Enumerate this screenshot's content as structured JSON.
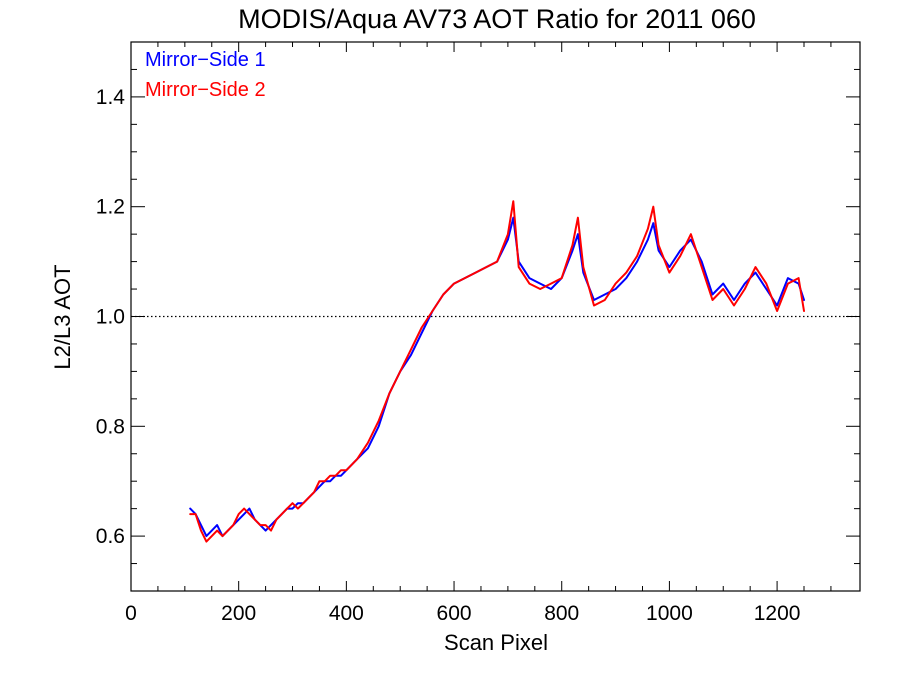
{
  "chart_data": {
    "type": "line",
    "title": "MODIS/Aqua AV73 AOT Ratio for 2011 060",
    "xlabel": "Scan Pixel",
    "ylabel": "L2/L3 AOT",
    "xlim": [
      0,
      1354
    ],
    "ylim": [
      0.5,
      1.5
    ],
    "xticks": [
      "0",
      "200",
      "400",
      "600",
      "800",
      "1000",
      "1200"
    ],
    "yticks": [
      "0.6",
      "0.8",
      "1.0",
      "1.2",
      "1.4"
    ],
    "reference_line": {
      "y": 1.0,
      "style": "dotted"
    },
    "legend": {
      "placement": "top-left"
    },
    "series": [
      {
        "name": "Mirror−Side 1",
        "color": "#0000ff",
        "x": [
          110,
          120,
          130,
          140,
          150,
          160,
          170,
          180,
          190,
          200,
          210,
          220,
          230,
          240,
          250,
          260,
          270,
          280,
          290,
          300,
          310,
          320,
          330,
          340,
          350,
          360,
          370,
          380,
          390,
          400,
          420,
          440,
          460,
          480,
          500,
          520,
          540,
          560,
          580,
          600,
          620,
          640,
          660,
          680,
          700,
          710,
          720,
          740,
          760,
          780,
          800,
          820,
          830,
          840,
          860,
          880,
          900,
          920,
          940,
          960,
          970,
          980,
          1000,
          1020,
          1040,
          1060,
          1080,
          1100,
          1120,
          1140,
          1160,
          1180,
          1200,
          1220,
          1240,
          1250
        ],
        "values": [
          0.65,
          0.64,
          0.62,
          0.6,
          0.61,
          0.62,
          0.6,
          0.61,
          0.62,
          0.63,
          0.64,
          0.65,
          0.63,
          0.62,
          0.61,
          0.62,
          0.63,
          0.64,
          0.65,
          0.65,
          0.66,
          0.66,
          0.67,
          0.68,
          0.69,
          0.7,
          0.7,
          0.71,
          0.71,
          0.72,
          0.74,
          0.76,
          0.8,
          0.86,
          0.9,
          0.93,
          0.97,
          1.01,
          1.04,
          1.06,
          1.07,
          1.08,
          1.09,
          1.1,
          1.14,
          1.18,
          1.1,
          1.07,
          1.06,
          1.05,
          1.07,
          1.12,
          1.15,
          1.08,
          1.03,
          1.04,
          1.05,
          1.07,
          1.1,
          1.14,
          1.17,
          1.12,
          1.09,
          1.12,
          1.14,
          1.1,
          1.04,
          1.06,
          1.03,
          1.06,
          1.08,
          1.05,
          1.02,
          1.07,
          1.06,
          1.03
        ]
      },
      {
        "name": "Mirror−Side 2",
        "color": "#ff0000",
        "x": [
          110,
          120,
          130,
          140,
          150,
          160,
          170,
          180,
          190,
          200,
          210,
          220,
          230,
          240,
          250,
          260,
          270,
          280,
          290,
          300,
          310,
          320,
          330,
          340,
          350,
          360,
          370,
          380,
          390,
          400,
          420,
          440,
          460,
          480,
          500,
          520,
          540,
          560,
          580,
          600,
          620,
          640,
          660,
          680,
          700,
          710,
          720,
          740,
          760,
          780,
          800,
          820,
          830,
          840,
          860,
          880,
          900,
          920,
          940,
          960,
          970,
          980,
          1000,
          1020,
          1040,
          1060,
          1080,
          1100,
          1120,
          1140,
          1160,
          1180,
          1200,
          1220,
          1240,
          1250
        ],
        "values": [
          0.64,
          0.64,
          0.61,
          0.59,
          0.6,
          0.61,
          0.6,
          0.61,
          0.62,
          0.64,
          0.65,
          0.64,
          0.63,
          0.62,
          0.62,
          0.61,
          0.63,
          0.64,
          0.65,
          0.66,
          0.65,
          0.66,
          0.67,
          0.68,
          0.7,
          0.7,
          0.71,
          0.71,
          0.72,
          0.72,
          0.74,
          0.77,
          0.81,
          0.86,
          0.9,
          0.94,
          0.98,
          1.01,
          1.04,
          1.06,
          1.07,
          1.08,
          1.09,
          1.1,
          1.15,
          1.21,
          1.09,
          1.06,
          1.05,
          1.06,
          1.07,
          1.13,
          1.18,
          1.09,
          1.02,
          1.03,
          1.06,
          1.08,
          1.11,
          1.16,
          1.2,
          1.13,
          1.08,
          1.11,
          1.15,
          1.09,
          1.03,
          1.05,
          1.02,
          1.05,
          1.09,
          1.06,
          1.01,
          1.06,
          1.07,
          1.01
        ]
      }
    ]
  }
}
